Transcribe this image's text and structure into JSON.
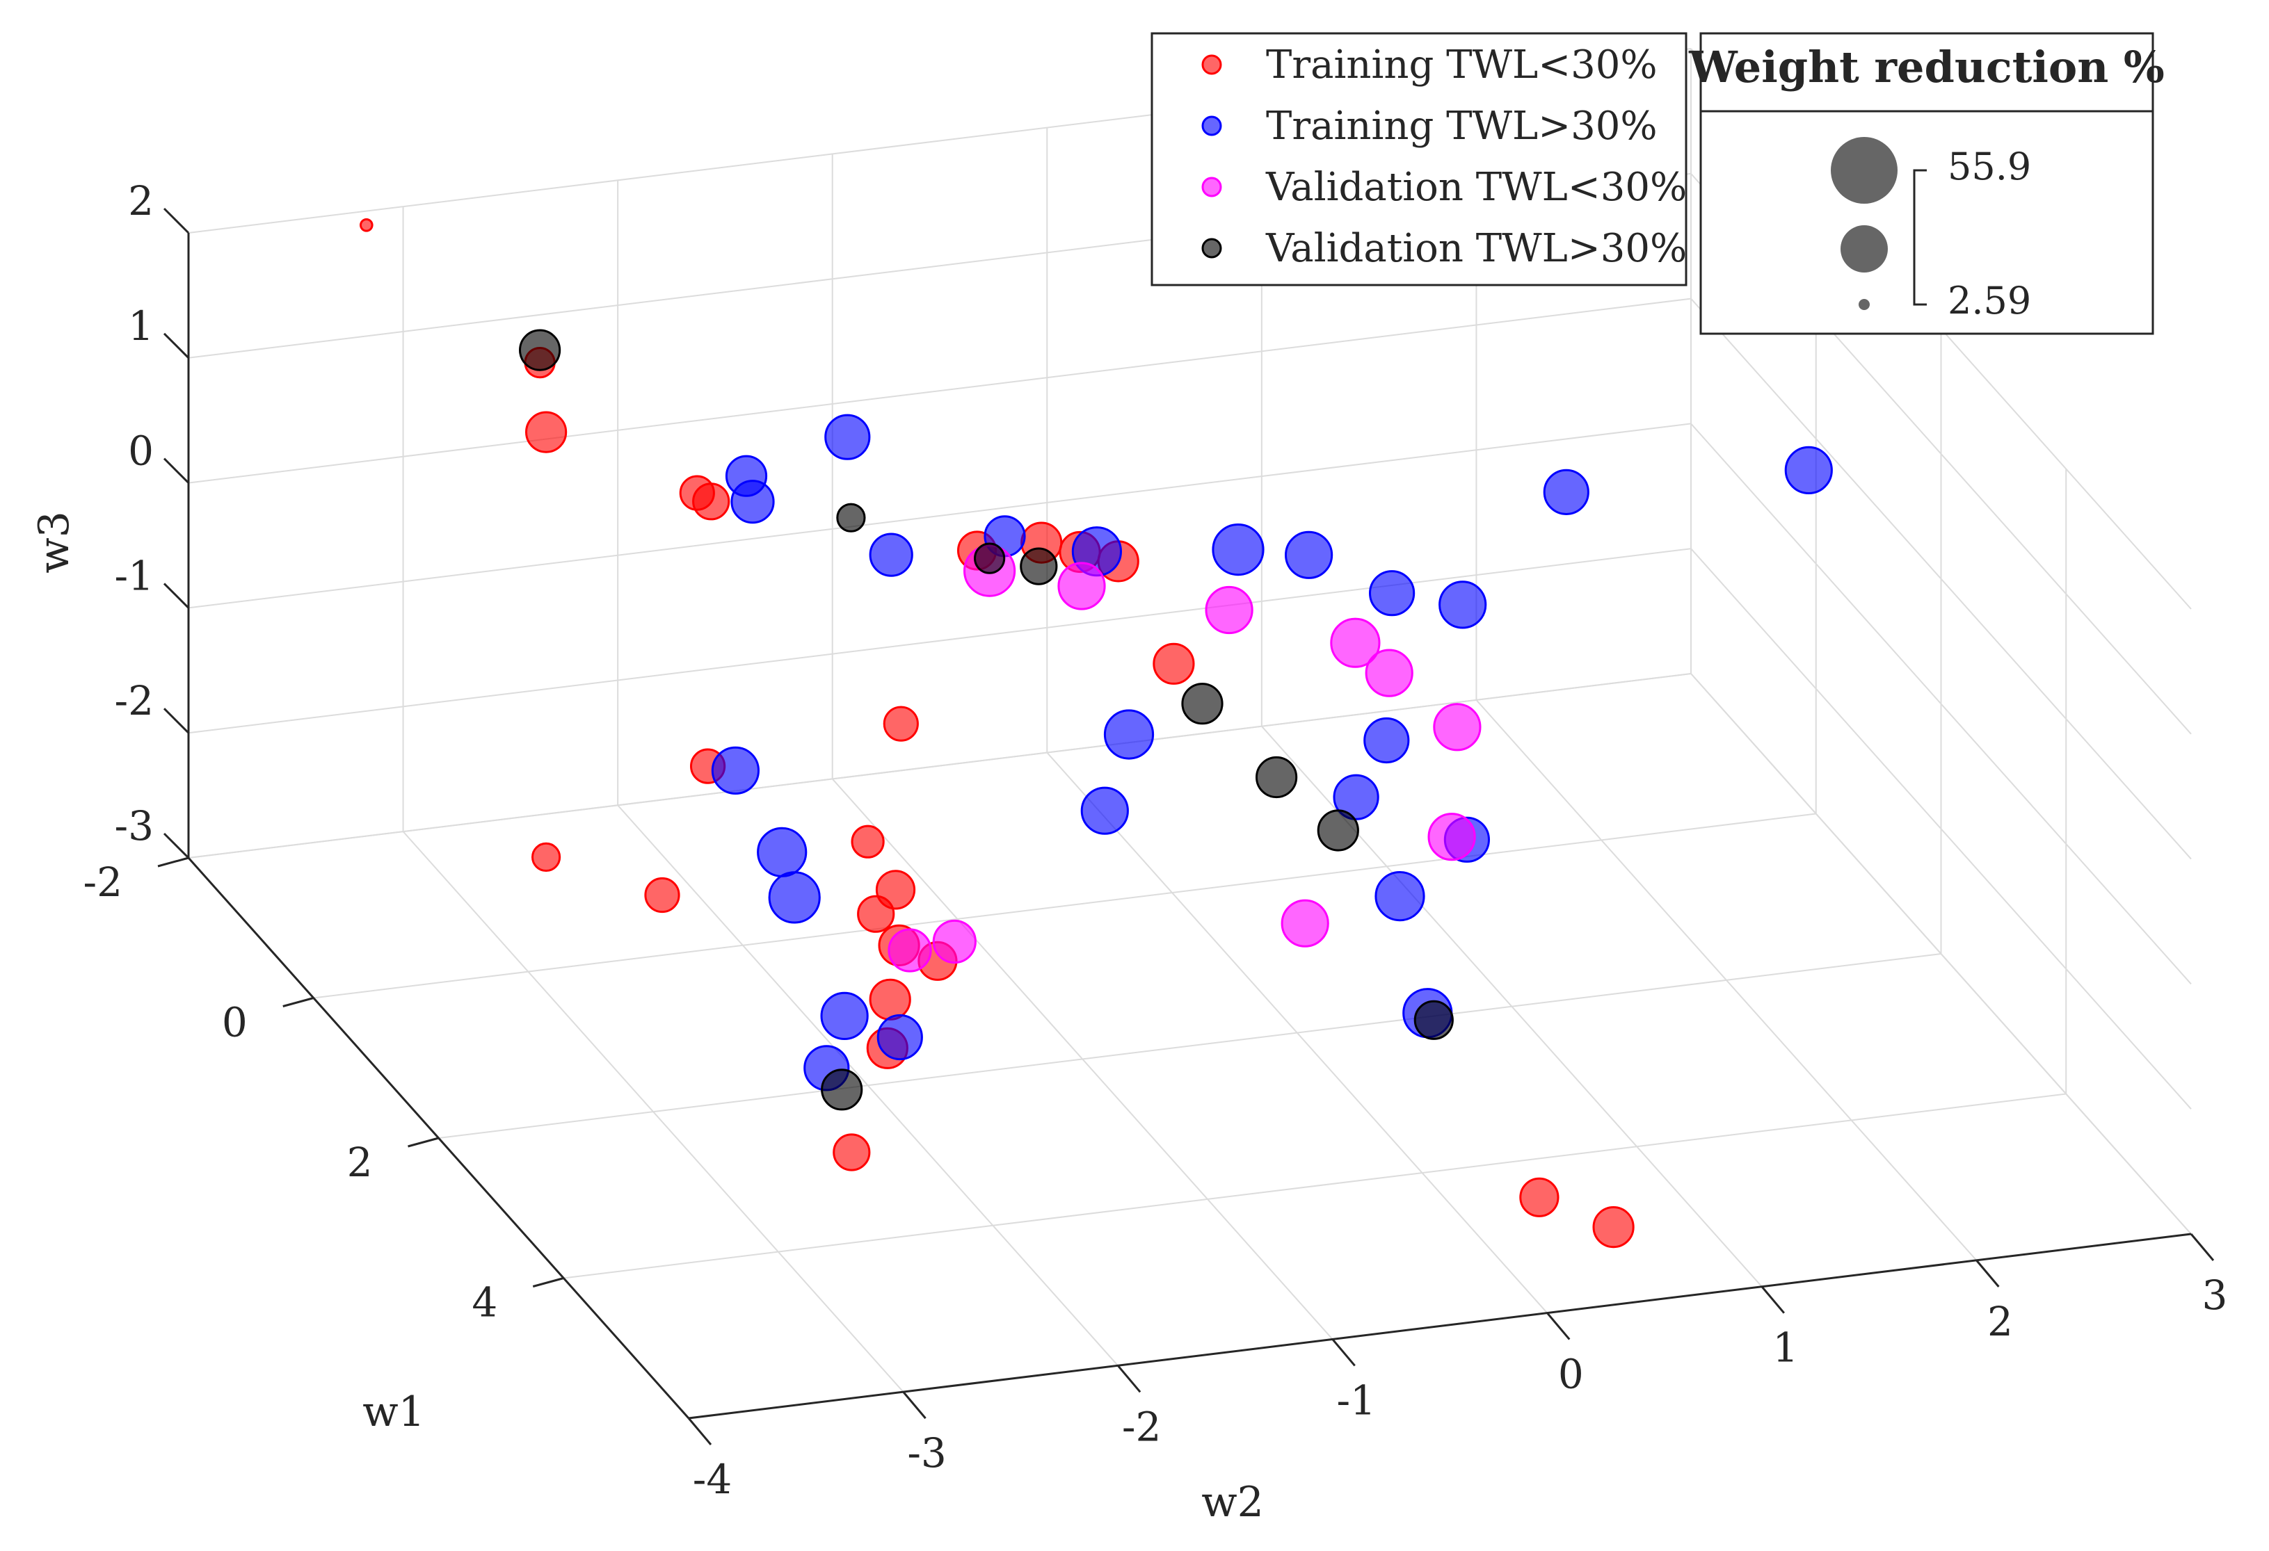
{
  "chart_data": {
    "type": "scatter3d",
    "xlabel": "w1",
    "ylabel": "w2",
    "zlabel": "w3",
    "xlim": [
      -2,
      6
    ],
    "ylim": [
      -4,
      3
    ],
    "zlim": [
      -3,
      2
    ],
    "x_ticks": [
      "-2",
      "0",
      "2",
      "4"
    ],
    "y_ticks": [
      "-4",
      "-3",
      "-2",
      "-1",
      "0",
      "1",
      "2",
      "3"
    ],
    "z_ticks": [
      "-3",
      "-2",
      "-1",
      "0",
      "1",
      "2"
    ],
    "grid": true,
    "legend_position": "top-right",
    "size_legend": {
      "title": "Weight reduction %",
      "max_label": "55.9",
      "min_label": "2.59",
      "max": 55.9,
      "min": 2.59
    },
    "series": [
      {
        "name": "Training TWL<30%",
        "color": "#ff0000",
        "points": [
          {
            "w1": -1.9,
            "w2": -3.2,
            "w3": 1.95,
            "size": 3
          },
          {
            "w1": -0.5,
            "w2": -2.8,
            "w3": 1.55,
            "size": 20
          },
          {
            "w1": -0.4,
            "w2": -2.8,
            "w3": 1.05,
            "size": 30
          },
          {
            "w1": -0.4,
            "w2": -2.8,
            "w3": -2.35,
            "size": 18
          },
          {
            "w1": 0.3,
            "w2": -2.3,
            "w3": 0.85,
            "size": 24
          },
          {
            "w1": 0.35,
            "w2": -2.25,
            "w3": 0.8,
            "size": 26
          },
          {
            "w1": 1.5,
            "w2": -2.6,
            "w3": -0.6,
            "size": 24
          },
          {
            "w1": 1.8,
            "w2": -2.9,
            "w3": -1.4,
            "size": 24
          },
          {
            "w1": 1.5,
            "w2": -1.7,
            "w3": -0.45,
            "size": 24
          },
          {
            "w1": 2.0,
            "w2": -2.0,
            "w3": -1.05,
            "size": 22
          },
          {
            "w1": 2.3,
            "w2": -2.05,
            "w3": -1.45,
            "size": 26
          },
          {
            "w1": 2.1,
            "w2": -1.9,
            "w3": -1.4,
            "size": 28
          },
          {
            "w1": 2.5,
            "w2": -2.0,
            "w3": -1.6,
            "size": 30
          },
          {
            "w1": 2.7,
            "w2": -2.1,
            "w3": -1.9,
            "size": 30
          },
          {
            "w1": 3.0,
            "w2": -2.2,
            "w3": -2.1,
            "size": 30
          },
          {
            "w1": 3.8,
            "w2": -2.6,
            "w3": -2.4,
            "size": 26
          },
          {
            "w1": 2.6,
            "w2": -1.85,
            "w3": -1.7,
            "size": 28
          },
          {
            "w1": 1.0,
            "w2": -1.2,
            "w3": 0.55,
            "size": 28
          },
          {
            "w1": 1.0,
            "w2": -0.9,
            "w3": 0.55,
            "size": 30
          },
          {
            "w1": 1.1,
            "w2": -0.75,
            "w3": 0.5,
            "size": 30
          },
          {
            "w1": 1.2,
            "w2": -0.6,
            "w3": 0.45,
            "size": 30
          },
          {
            "w1": 1.4,
            "w2": -0.4,
            "w3": -0.3,
            "size": 30
          },
          {
            "w1": 4.5,
            "w2": 0.4,
            "w3": -3.0,
            "size": 28
          },
          {
            "w1": 5.0,
            "w2": 0.6,
            "w3": -3.0,
            "size": 30
          }
        ]
      },
      {
        "name": "Training TWL>30%",
        "color": "#0000ff",
        "points": [
          {
            "w1": 0.4,
            "w2": -2.1,
            "w3": 1.0,
            "size": 30
          },
          {
            "w1": 0.5,
            "w2": -2.1,
            "w3": 0.85,
            "size": 32
          },
          {
            "w1": 0.3,
            "w2": -1.6,
            "w3": 1.15,
            "size": 34
          },
          {
            "w1": 1.0,
            "w2": -1.6,
            "w3": 0.6,
            "size": 32
          },
          {
            "w1": 1.1,
            "w2": -1.1,
            "w3": 0.7,
            "size": 30
          },
          {
            "w1": 1.2,
            "w2": -0.7,
            "w3": 0.55,
            "size": 38
          },
          {
            "w1": 1.4,
            "w2": -0.1,
            "w3": 0.55,
            "size": 40
          },
          {
            "w1": 1.5,
            "w2": 0.2,
            "w3": 0.5,
            "size": 36
          },
          {
            "w1": 1.8,
            "w2": 0.5,
            "w3": 0.3,
            "size": 34
          },
          {
            "w1": 1.9,
            "w2": 0.8,
            "w3": 0.2,
            "size": 36
          },
          {
            "w1": 1.5,
            "w2": 1.4,
            "w3": 0.75,
            "size": 34
          },
          {
            "w1": 1.6,
            "w2": 2.5,
            "w3": 0.75,
            "size": 36
          },
          {
            "w1": 2.4,
            "w2": -0.9,
            "w3": -0.2,
            "size": 38
          },
          {
            "w1": 2.7,
            "w2": -1.1,
            "w3": -0.6,
            "size": 36
          },
          {
            "w1": 2.4,
            "w2": 0.3,
            "w3": -0.5,
            "size": 34
          },
          {
            "w1": 2.6,
            "w2": 0.1,
            "w3": -0.8,
            "size": 34
          },
          {
            "w1": 3.0,
            "w2": 0.5,
            "w3": -1.0,
            "size": 34
          },
          {
            "w1": 3.3,
            "w2": 0.1,
            "w3": -1.2,
            "size": 38
          },
          {
            "w1": 3.4,
            "w2": 0.2,
            "w3": -2.1,
            "size": 38
          },
          {
            "w1": 1.6,
            "w2": -2.5,
            "w3": -0.6,
            "size": 36
          },
          {
            "w1": 2.0,
            "w2": -2.4,
            "w3": -1.05,
            "size": 38
          },
          {
            "w1": 2.2,
            "w2": -2.4,
            "w3": -1.3,
            "size": 40
          },
          {
            "w1": 3.0,
            "w2": -2.4,
            "w3": -1.8,
            "size": 36
          },
          {
            "w1": 3.2,
            "w2": -2.2,
            "w3": -1.9,
            "size": 34
          },
          {
            "w1": 3.4,
            "w2": -2.6,
            "w3": -1.95,
            "size": 34
          }
        ]
      },
      {
        "name": "Validation TWL<30%",
        "color": "#ff00ff",
        "points": [
          {
            "w1": 1.2,
            "w2": -1.2,
            "w3": 0.5,
            "size": 40
          },
          {
            "w1": 1.3,
            "w2": -0.8,
            "w3": 0.35,
            "size": 36
          },
          {
            "w1": 1.6,
            "w2": -0.2,
            "w3": 0.2,
            "size": 36
          },
          {
            "w1": 1.9,
            "w2": 0.3,
            "w3": 0.0,
            "size": 38
          },
          {
            "w1": 2.1,
            "w2": 0.4,
            "w3": -0.15,
            "size": 36
          },
          {
            "w1": 2.5,
            "w2": 0.6,
            "w3": -0.4,
            "size": 36
          },
          {
            "w1": 3.1,
            "w2": 0.4,
            "w3": -0.9,
            "size": 36
          },
          {
            "w1": 3.5,
            "w2": -0.4,
            "w3": -1.2,
            "size": 36
          },
          {
            "w1": 2.7,
            "w2": -1.8,
            "w3": -1.5,
            "size": 32
          },
          {
            "w1": 2.5,
            "w2": -1.95,
            "w3": -1.65,
            "size": 32
          }
        ]
      },
      {
        "name": "Validation TWL>30%",
        "color": "#000000",
        "points": [
          {
            "w1": -0.5,
            "w2": -2.8,
            "w3": 1.65,
            "size": 30
          },
          {
            "w1": 0.7,
            "w2": -1.7,
            "w3": 0.75,
            "size": 18
          },
          {
            "w1": 1.2,
            "w2": -1.2,
            "w3": 0.6,
            "size": 20
          },
          {
            "w1": 1.3,
            "w2": -1.0,
            "w3": 0.55,
            "size": 26
          },
          {
            "w1": 2.2,
            "w2": -0.5,
            "w3": -0.15,
            "size": 30
          },
          {
            "w1": 2.7,
            "w2": -0.3,
            "w3": -0.5,
            "size": 30
          },
          {
            "w1": 3.0,
            "w2": -0.1,
            "w3": -0.8,
            "size": 30
          },
          {
            "w1": 3.3,
            "w2": -2.5,
            "w3": -2.2,
            "size": 30
          },
          {
            "w1": 3.5,
            "w2": 0.2,
            "w3": -2.1,
            "size": 28
          }
        ]
      }
    ]
  }
}
